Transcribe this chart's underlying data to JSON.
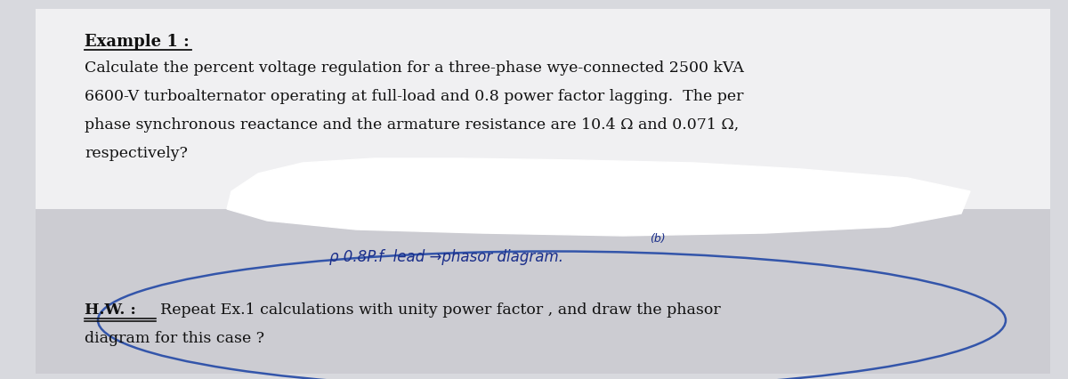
{
  "bg_color": "#d8d9de",
  "paper_color": "#f0f0f2",
  "lower_bg_color": "#ccccd2",
  "title": "Example 1 :",
  "para1": "Calculate the percent voltage regulation for a three-phase wye-connected 2500 kVA",
  "para2": "6600-V turboalternator operating at full-load and 0.8 power factor lagging.  The per",
  "para3": "phase synchronous reactance and the armature resistance are 10.4 Ω and 0.071 Ω,",
  "para4": "respectively?",
  "handwritten_b": "(b)",
  "handwritten_main": "ρ 0.8P.f  lead →phasor diagram.",
  "hw_label": "H.W. :",
  "hw_text1": "Repeat Ex.1 calculations with unity power factor , and draw the phasor",
  "hw_text2": "diagram for this case ?",
  "text_color": "#111111",
  "handwritten_color": "#1a2e8a",
  "ellipse_color": "#3355aa",
  "font_size_title": 13,
  "font_size_body": 12.5,
  "font_size_hw": 12.5,
  "font_size_handwritten": 12
}
